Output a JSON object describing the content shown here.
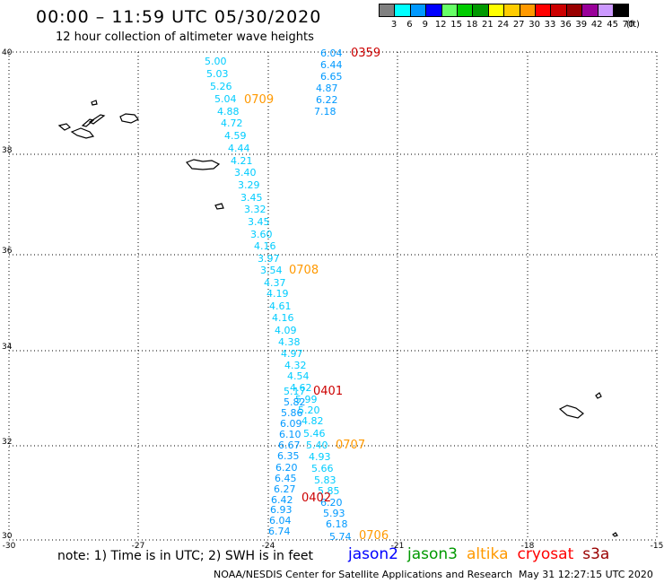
{
  "header": {
    "title": "00:00 – 11:59 UTC 05/30/2020",
    "subtitle": "12 hour collection of altimeter wave heights"
  },
  "legend": {
    "unit": "(ft)",
    "bins": [
      {
        "label": "3",
        "color": "#808080"
      },
      {
        "label": "6",
        "color": "#00ffff"
      },
      {
        "label": "9",
        "color": "#0099ff"
      },
      {
        "label": "12",
        "color": "#0000ff"
      },
      {
        "label": "15",
        "color": "#66ff66"
      },
      {
        "label": "18",
        "color": "#00cc00"
      },
      {
        "label": "21",
        "color": "#009900"
      },
      {
        "label": "24",
        "color": "#ffff00"
      },
      {
        "label": "27",
        "color": "#ffcc00"
      },
      {
        "label": "30",
        "color": "#ff9900"
      },
      {
        "label": "33",
        "color": "#ff0000"
      },
      {
        "label": "36",
        "color": "#cc0000"
      },
      {
        "label": "39",
        "color": "#990000"
      },
      {
        "label": "42",
        "color": "#990099"
      },
      {
        "label": "45",
        "color": "#cc99ff"
      },
      {
        "label": "70",
        "color": "#000000"
      }
    ]
  },
  "map": {
    "lon_range": [
      -30,
      -15
    ],
    "lat_range": [
      30,
      40
    ],
    "x_ticks": [
      "-30",
      "-27",
      "-24",
      "-21",
      "-18",
      "-15"
    ],
    "y_ticks": [
      "40",
      "38",
      "36",
      "34",
      "32",
      "30"
    ],
    "grid": "dotted",
    "pass_labels": [
      {
        "text": "0359",
        "color": "#cc0000"
      },
      {
        "text": "0709",
        "color": "#ff9900"
      },
      {
        "text": "0708",
        "color": "#ff9900"
      },
      {
        "text": "0401",
        "color": "#cc0000"
      },
      {
        "text": "0707",
        "color": "#ff9900"
      },
      {
        "text": "0402",
        "color": "#cc0000"
      },
      {
        "text": "0706",
        "color": "#ff9900"
      }
    ],
    "wave_heights": [
      {
        "text": "6.04",
        "color": "#0099ff"
      },
      {
        "text": "6.44",
        "color": "#0099ff"
      },
      {
        "text": "6.65",
        "color": "#0099ff"
      },
      {
        "text": "4.87",
        "color": "#0099ff"
      },
      {
        "text": "6.22",
        "color": "#0099ff"
      },
      {
        "text": "7.18",
        "color": "#0099ff"
      },
      {
        "text": "5.00",
        "color": "#00ccff"
      },
      {
        "text": "5.03",
        "color": "#00ccff"
      },
      {
        "text": "5.26",
        "color": "#00ccff"
      },
      {
        "text": "5.04",
        "color": "#00ccff"
      },
      {
        "text": "4.88",
        "color": "#00ccff"
      },
      {
        "text": "4.72",
        "color": "#00ccff"
      },
      {
        "text": "4.59",
        "color": "#00ccff"
      },
      {
        "text": "4.44",
        "color": "#00ccff"
      },
      {
        "text": "4.21",
        "color": "#00ccff"
      },
      {
        "text": "3.40",
        "color": "#00ccff"
      },
      {
        "text": "3.29",
        "color": "#00ccff"
      },
      {
        "text": "3.45",
        "color": "#00ccff"
      },
      {
        "text": "3.32",
        "color": "#00ccff"
      },
      {
        "text": "3.45",
        "color": "#00ccff"
      },
      {
        "text": "3.60",
        "color": "#00ccff"
      },
      {
        "text": "4.16",
        "color": "#00ccff"
      },
      {
        "text": "3.97",
        "color": "#00ccff"
      },
      {
        "text": "3.54",
        "color": "#00ccff"
      },
      {
        "text": "4.37",
        "color": "#00ccff"
      },
      {
        "text": "4.19",
        "color": "#00ccff"
      },
      {
        "text": "4.61",
        "color": "#00ccff"
      },
      {
        "text": "4.16",
        "color": "#00ccff"
      },
      {
        "text": "4.09",
        "color": "#00ccff"
      },
      {
        "text": "4.38",
        "color": "#00ccff"
      },
      {
        "text": "4.97",
        "color": "#00ccff"
      },
      {
        "text": "4.32",
        "color": "#00ccff"
      },
      {
        "text": "4.54",
        "color": "#00ccff"
      },
      {
        "text": "4.62",
        "color": "#00ccff"
      },
      {
        "text": "5.17",
        "color": "#00ccff"
      },
      {
        "text": "5.99",
        "color": "#00ccff"
      },
      {
        "text": "5.82",
        "color": "#0099ff"
      },
      {
        "text": "5.20",
        "color": "#00ccff"
      },
      {
        "text": "5.86",
        "color": "#0099ff"
      },
      {
        "text": "6.09",
        "color": "#0099ff"
      },
      {
        "text": "4.82",
        "color": "#00ccff"
      },
      {
        "text": "5.46",
        "color": "#00ccff"
      },
      {
        "text": "6.10",
        "color": "#0099ff"
      },
      {
        "text": "6.67",
        "color": "#0099ff"
      },
      {
        "text": "5.40",
        "color": "#00ccff"
      },
      {
        "text": "6.35",
        "color": "#0099ff"
      },
      {
        "text": "4.93",
        "color": "#00ccff"
      },
      {
        "text": "6.20",
        "color": "#0099ff"
      },
      {
        "text": "5.66",
        "color": "#00ccff"
      },
      {
        "text": "6.45",
        "color": "#0099ff"
      },
      {
        "text": "5.83",
        "color": "#00ccff"
      },
      {
        "text": "6.27",
        "color": "#0099ff"
      },
      {
        "text": "5.85",
        "color": "#00ccff"
      },
      {
        "text": "6.42",
        "color": "#0099ff"
      },
      {
        "text": "6.20",
        "color": "#0099ff"
      },
      {
        "text": "6.93",
        "color": "#0099ff"
      },
      {
        "text": "5.93",
        "color": "#0099ff"
      },
      {
        "text": "6.04",
        "color": "#0099ff"
      },
      {
        "text": "6.18",
        "color": "#0099ff"
      },
      {
        "text": "6.74",
        "color": "#0099ff"
      },
      {
        "text": "5.74",
        "color": "#0099ff"
      }
    ]
  },
  "footer": {
    "note": "note: 1) Time is in UTC; 2) SWH is in feet",
    "missions": [
      {
        "name": "jason2",
        "color": "#0000ff"
      },
      {
        "name": "jason3",
        "color": "#009900"
      },
      {
        "name": "altika",
        "color": "#ff9900"
      },
      {
        "name": "cryosat",
        "color": "#ff0000"
      },
      {
        "name": "s3a",
        "color": "#990000"
      }
    ],
    "credit": "NOAA/NESDIS Center for Satellite Applications and Research",
    "timestamp": "May 31 12:27:15 UTC 2020"
  }
}
